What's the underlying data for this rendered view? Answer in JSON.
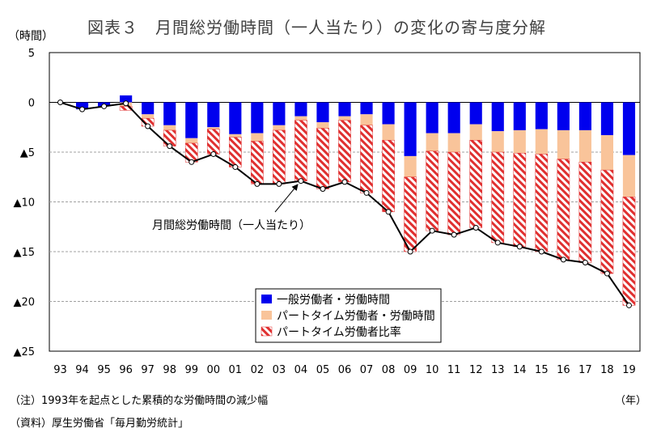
{
  "title": "図表３　月間総労働時間（一人当たり）の変化の寄与度分解",
  "y_unit": "（時間）",
  "x_unit": "（年）",
  "note": "（注）1993年を起点とした累積的な労働時間の減少幅",
  "source": "（資料）厚生労働省「毎月勤労統計」",
  "colors": {
    "general": "#0000ee",
    "parttime_hours": "#f9c49a",
    "parttime_ratio": "#e03030",
    "line": "#000000",
    "grid": "#a0a0a0"
  },
  "chart_data": {
    "type": "bar",
    "stacked": true,
    "title": "図表３　月間総労働時間（一人当たり）の変化の寄与度分解",
    "ylabel": "（時間）",
    "xlabel": "（年）",
    "ylim": [
      -25,
      5
    ],
    "yticks": [
      {
        "value": 5,
        "label": "5"
      },
      {
        "value": 0,
        "label": "0"
      },
      {
        "value": -5,
        "label": "▲5"
      },
      {
        "value": -10,
        "label": "▲10"
      },
      {
        "value": -15,
        "label": "▲15"
      },
      {
        "value": -20,
        "label": "▲20"
      },
      {
        "value": -25,
        "label": "▲25"
      }
    ],
    "grid": true,
    "legend": "bottom-center",
    "categories": [
      "93",
      "94",
      "95",
      "96",
      "97",
      "98",
      "99",
      "00",
      "01",
      "02",
      "03",
      "04",
      "05",
      "06",
      "07",
      "08",
      "09",
      "10",
      "11",
      "12",
      "13",
      "14",
      "15",
      "16",
      "17",
      "18",
      "19"
    ],
    "series": [
      {
        "name": "一般労働者・労働時間",
        "kind": "bar",
        "style": "solid",
        "color": "#0000ee",
        "values": [
          0,
          -0.7,
          -0.4,
          0.7,
          -1.2,
          -2.3,
          -3.6,
          -2.5,
          -3.2,
          -3.1,
          -2.3,
          -1.4,
          -2.0,
          -1.4,
          -1.2,
          -2.2,
          -5.4,
          -3.1,
          -3.1,
          -2.2,
          -2.9,
          -2.8,
          -2.7,
          -2.8,
          -2.8,
          -3.3,
          -5.3
        ]
      },
      {
        "name": "パートタイム労働者・労働時間",
        "kind": "bar",
        "style": "solid",
        "color": "#f9c49a",
        "values": [
          0,
          0,
          0,
          -0.4,
          -0.4,
          -0.5,
          -0.5,
          -0.2,
          -0.3,
          -0.8,
          -0.5,
          -0.4,
          -0.6,
          -0.4,
          -1.1,
          -1.6,
          -2.1,
          -1.8,
          -1.9,
          -1.6,
          -2.1,
          -2.3,
          -2.5,
          -2.9,
          -3.2,
          -3.5,
          -4.2
        ]
      },
      {
        "name": "パートタイム労働者比率",
        "kind": "bar",
        "style": "hatched",
        "color": "#e03030",
        "values": [
          0,
          0,
          0,
          -0.4,
          -0.8,
          -1.6,
          -1.9,
          -2.5,
          -3.0,
          -4.3,
          -5.4,
          -6.1,
          -6.1,
          -6.2,
          -6.8,
          -7.2,
          -7.5,
          -8.0,
          -8.3,
          -8.8,
          -9.1,
          -9.4,
          -9.8,
          -10.1,
          -10.1,
          -10.4,
          -10.9
        ]
      },
      {
        "name": "月間総労働時間（一人当たり）",
        "kind": "line",
        "color": "#000000",
        "values": [
          0,
          -0.7,
          -0.4,
          -0.1,
          -2.4,
          -4.4,
          -6.0,
          -5.2,
          -6.5,
          -8.2,
          -8.2,
          -7.9,
          -8.7,
          -8.0,
          -9.1,
          -11.0,
          -15.0,
          -12.9,
          -13.3,
          -12.6,
          -14.1,
          -14.5,
          -15.0,
          -15.8,
          -16.1,
          -17.2,
          -20.4
        ]
      }
    ],
    "annotation": "月間総労働時間（一人当たり）"
  }
}
